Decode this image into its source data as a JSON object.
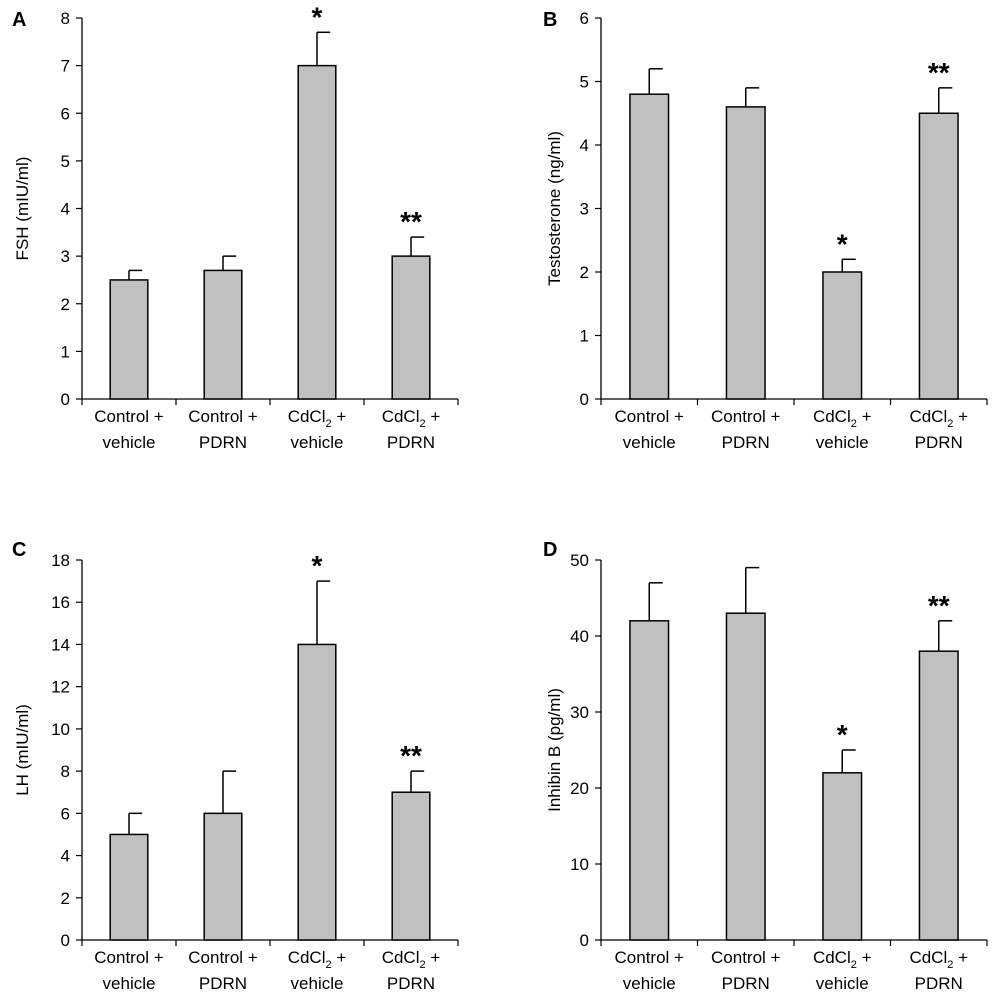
{
  "chart_data": [
    {
      "type": "bar",
      "panel": "A",
      "ylabel": "FSH (mIU/ml)",
      "ylim": [
        0,
        8
      ],
      "yticks": [
        0,
        1,
        2,
        3,
        4,
        5,
        6,
        7,
        8
      ],
      "categories": [
        {
          "line1": "Control +",
          "line1_sub": "",
          "line1_after": "",
          "line2": "vehicle"
        },
        {
          "line1": "Control +",
          "line1_sub": "",
          "line1_after": "",
          "line2": "PDRN"
        },
        {
          "line1": "CdCl",
          "line1_sub": "2",
          "line1_after": " +",
          "line2": "vehicle"
        },
        {
          "line1": "CdCl",
          "line1_sub": "2",
          "line1_after": " +",
          "line2": "PDRN"
        }
      ],
      "values": [
        2.5,
        2.7,
        7.0,
        3.0
      ],
      "errors": [
        0.2,
        0.3,
        0.7,
        0.4
      ],
      "significance": [
        "",
        "",
        "*",
        "**"
      ]
    },
    {
      "type": "bar",
      "panel": "B",
      "ylabel": "Testosterone (ng/ml)",
      "ylim": [
        0,
        6
      ],
      "yticks": [
        0,
        1,
        2,
        3,
        4,
        5,
        6
      ],
      "categories": [
        {
          "line1": "Control +",
          "line1_sub": "",
          "line1_after": "",
          "line2": "vehicle"
        },
        {
          "line1": "Control +",
          "line1_sub": "",
          "line1_after": "",
          "line2": "PDRN"
        },
        {
          "line1": "CdCl",
          "line1_sub": "2",
          "line1_after": " +",
          "line2": "vehicle"
        },
        {
          "line1": "CdCl",
          "line1_sub": "2",
          "line1_after": " +",
          "line2": "PDRN"
        }
      ],
      "values": [
        4.8,
        4.6,
        2.0,
        4.5
      ],
      "errors": [
        0.4,
        0.3,
        0.2,
        0.4
      ],
      "significance": [
        "",
        "",
        "*",
        "**"
      ]
    },
    {
      "type": "bar",
      "panel": "C",
      "ylabel": "LH (mIU/ml)",
      "ylim": [
        0,
        18
      ],
      "yticks": [
        0,
        2,
        4,
        6,
        8,
        10,
        12,
        14,
        16,
        18
      ],
      "categories": [
        {
          "line1": "Control +",
          "line1_sub": "",
          "line1_after": "",
          "line2": "vehicle"
        },
        {
          "line1": "Control +",
          "line1_sub": "",
          "line1_after": "",
          "line2": "PDRN"
        },
        {
          "line1": "CdCl",
          "line1_sub": "2",
          "line1_after": " +",
          "line2": "vehicle"
        },
        {
          "line1": "CdCl",
          "line1_sub": "2",
          "line1_after": " +",
          "line2": "PDRN"
        }
      ],
      "values": [
        5,
        6,
        14,
        7
      ],
      "errors": [
        1,
        2,
        3,
        1
      ],
      "significance": [
        "",
        "",
        "*",
        "**"
      ]
    },
    {
      "type": "bar",
      "panel": "D",
      "ylabel": "Inhibin B (pg/ml)",
      "ylim": [
        0,
        50
      ],
      "yticks": [
        0,
        10,
        20,
        30,
        40,
        50
      ],
      "categories": [
        {
          "line1": "Control +",
          "line1_sub": "",
          "line1_after": "",
          "line2": "vehicle"
        },
        {
          "line1": "Control +",
          "line1_sub": "",
          "line1_after": "",
          "line2": "PDRN"
        },
        {
          "line1": "CdCl",
          "line1_sub": "2",
          "line1_after": " +",
          "line2": "vehicle"
        },
        {
          "line1": "CdCl",
          "line1_sub": "2",
          "line1_after": " +",
          "line2": "PDRN"
        }
      ],
      "values": [
        42,
        43,
        22,
        38
      ],
      "errors": [
        5,
        6,
        3,
        4
      ],
      "significance": [
        "",
        "",
        "*",
        "**"
      ]
    }
  ],
  "colors": {
    "bar_fill": "#c0c0c0",
    "bar_stroke": "#000000",
    "axis": "#000000"
  }
}
